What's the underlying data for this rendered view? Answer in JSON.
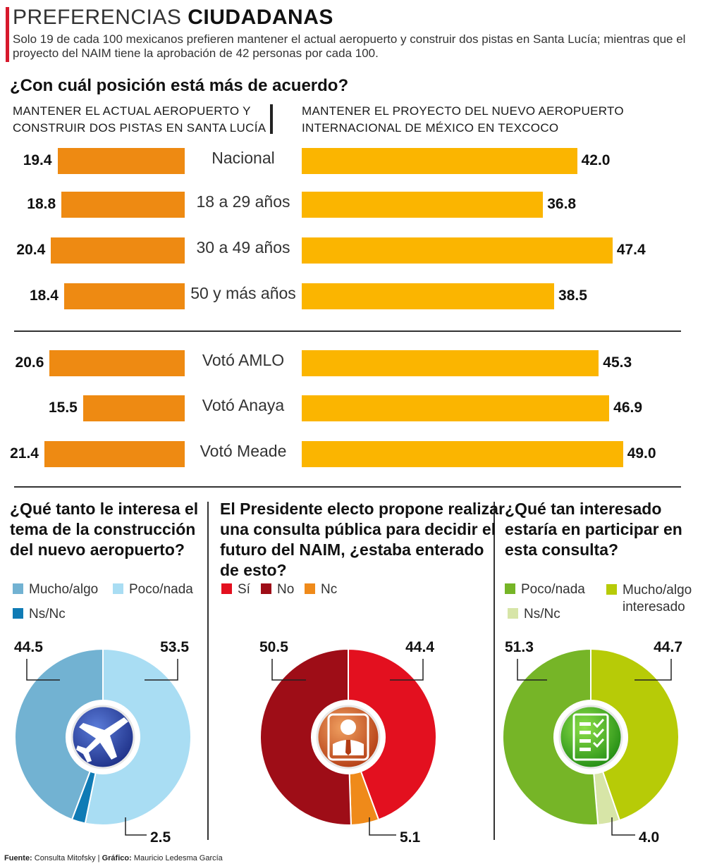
{
  "header": {
    "title_light": "PREFERENCIAS",
    "title_bold": "CIUDADANAS",
    "subtitle": "Solo 19 de cada 100 mexicanos prefieren mantener el actual aeropuerto y construir dos pistas en Santa Lucía; mientras que el proyecto del NAIM tiene la aprobación de 42 personas por cada 100."
  },
  "main_question": "¿Con cuál posición está más de acuerdo?",
  "left_heading_1": "MANTENER EL ACTUAL AEROPUERTO Y",
  "left_heading_2": "CONSTRUIR DOS PISTAS EN SANTA LUCÍA",
  "right_heading_1": "MANTENER EL PROYECTO DEL NUEVO AEROPUERTO",
  "right_heading_2": "INTERNACIONAL DE MÉXICO EN TEXCOCO",
  "colors": {
    "accent_red": "#d7192c",
    "left_bar": "#ee8a12",
    "right_bar": "#fbb500",
    "pie1": [
      "#72b2d2",
      "#a9ddf3",
      "#0f7bb5"
    ],
    "pie2": [
      "#e3101f",
      "#9e0d17",
      "#ef8a1a"
    ],
    "pie3": [
      "#76b527",
      "#b7cb07",
      "#d7e5a7"
    ]
  },
  "chart_data": [
    {
      "type": "bar",
      "categories": [
        "Nacional",
        "18 a 29 años",
        "30 a 49 años",
        "50 y más años",
        "Votó AMLO",
        "Votó Anaya",
        "Votó Meade"
      ],
      "series": [
        {
          "values": [
            19.4,
            18.8,
            20.4,
            18.4,
            20.6,
            15.5,
            21.4
          ]
        },
        {
          "values": [
            42.0,
            36.8,
            47.4,
            38.5,
            45.3,
            46.9,
            49.0
          ]
        }
      ],
      "value_labels_left": [
        "19.4",
        "18.8",
        "20.4",
        "18.4",
        "20.6",
        "15.5",
        "21.4"
      ],
      "value_labels_right": [
        "42.0",
        "36.8",
        "47.4",
        "38.5",
        "45.3",
        "46.9",
        "49.0"
      ]
    },
    {
      "type": "pie",
      "title": "¿Qué tanto le interesa el tema de la construcción del nuevo aeropuerto?",
      "labels": [
        "Mucho/algo",
        "Poco/nada",
        "Ns/Nc"
      ],
      "values": [
        44.5,
        53.5,
        2.5
      ],
      "value_labels": [
        "44.5",
        "53.5",
        "2.5"
      ],
      "icon": "airplane-icon"
    },
    {
      "type": "pie",
      "title": "El Presidente electo propone realizar una consulta pública para decidir el futuro del NAIM, ¿estaba enterado de esto?",
      "labels": [
        "Sí",
        "No",
        "Nc"
      ],
      "values": [
        44.4,
        50.5,
        5.1
      ],
      "value_labels": [
        "44.4",
        "50.5",
        "5.1"
      ],
      "icon": "businessman-icon"
    },
    {
      "type": "pie",
      "title": "¿Qué tan interesado estaría en participar en esta consulta?",
      "labels": [
        "Poco/nada",
        "Mucho/algo interesado",
        "Ns/Nc"
      ],
      "values": [
        51.3,
        44.7,
        4.0
      ],
      "value_labels": [
        "51.3",
        "44.7",
        "4.0"
      ],
      "icon": "checklist-icon"
    }
  ],
  "pie1": {
    "q1": "¿Qué tanto le interesa el",
    "q2": "tema de la construcción",
    "q3": "del nuevo aeropuerto?",
    "legend": [
      "Mucho/algo",
      "Poco/nada",
      "Ns/Nc"
    ]
  },
  "pie2": {
    "q1": "El Presidente electo propone realizar",
    "q2": "una consulta pública para decidir el",
    "q3": "futuro del NAIM, ¿estaba enterado",
    "q4": "de esto?",
    "legend": [
      "Sí",
      "No",
      "Nc"
    ]
  },
  "pie3": {
    "q1": "¿Qué tan interesado",
    "q2": "estaría en participar en",
    "q3": "esta consulta?",
    "legend": [
      "Poco/nada",
      "Mucho/algo",
      "interesado",
      "Ns/Nc"
    ]
  },
  "footer": {
    "source_label": "Fuente:",
    "source": "Consulta Mitofsky",
    "sep": "|",
    "graphic_label": "Gráfico:",
    "graphic": "Mauricio Ledesma García"
  }
}
